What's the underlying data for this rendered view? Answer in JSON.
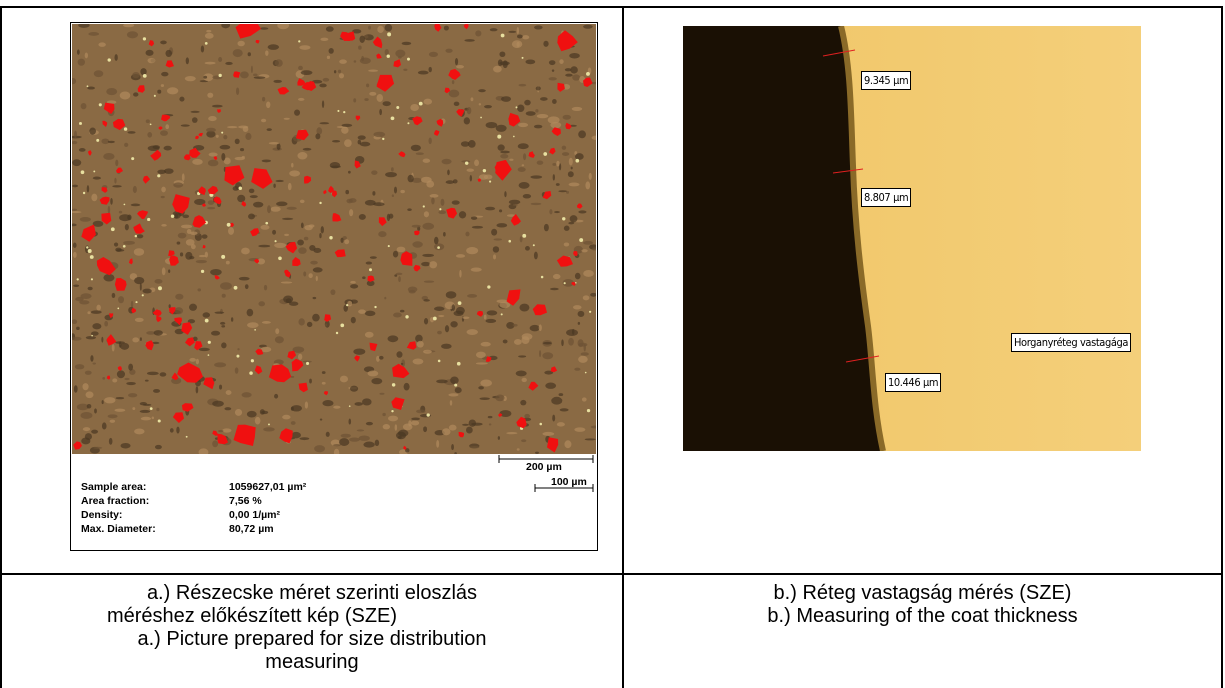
{
  "figure_a": {
    "stats": [
      {
        "label": "Sample area:",
        "value": "1059627,01 µm²"
      },
      {
        "label": "Area fraction:",
        "value": "7,56 %"
      },
      {
        "label": "Density:",
        "value": "0,00 1/µm²"
      },
      {
        "label": "Max. Diameter:",
        "value": "80,72 µm"
      }
    ],
    "scale_bars": [
      "200 µm",
      "100 µm"
    ],
    "caption": [
      "a.) Részecske méret szerinti eloszlás",
      "méréshez előkészített kép (SZE)",
      "a.) Picture prepared for size distribution",
      "measuring"
    ]
  },
  "figure_b": {
    "measurements": [
      "9.345 µm",
      "8.807 µm",
      "10.446 µm"
    ],
    "annotation": "Horganyréteg vastagága",
    "caption": [
      "b.) Réteg vastagság mérés (SZE)",
      "b.) Measuring of the coat thickness"
    ]
  }
}
